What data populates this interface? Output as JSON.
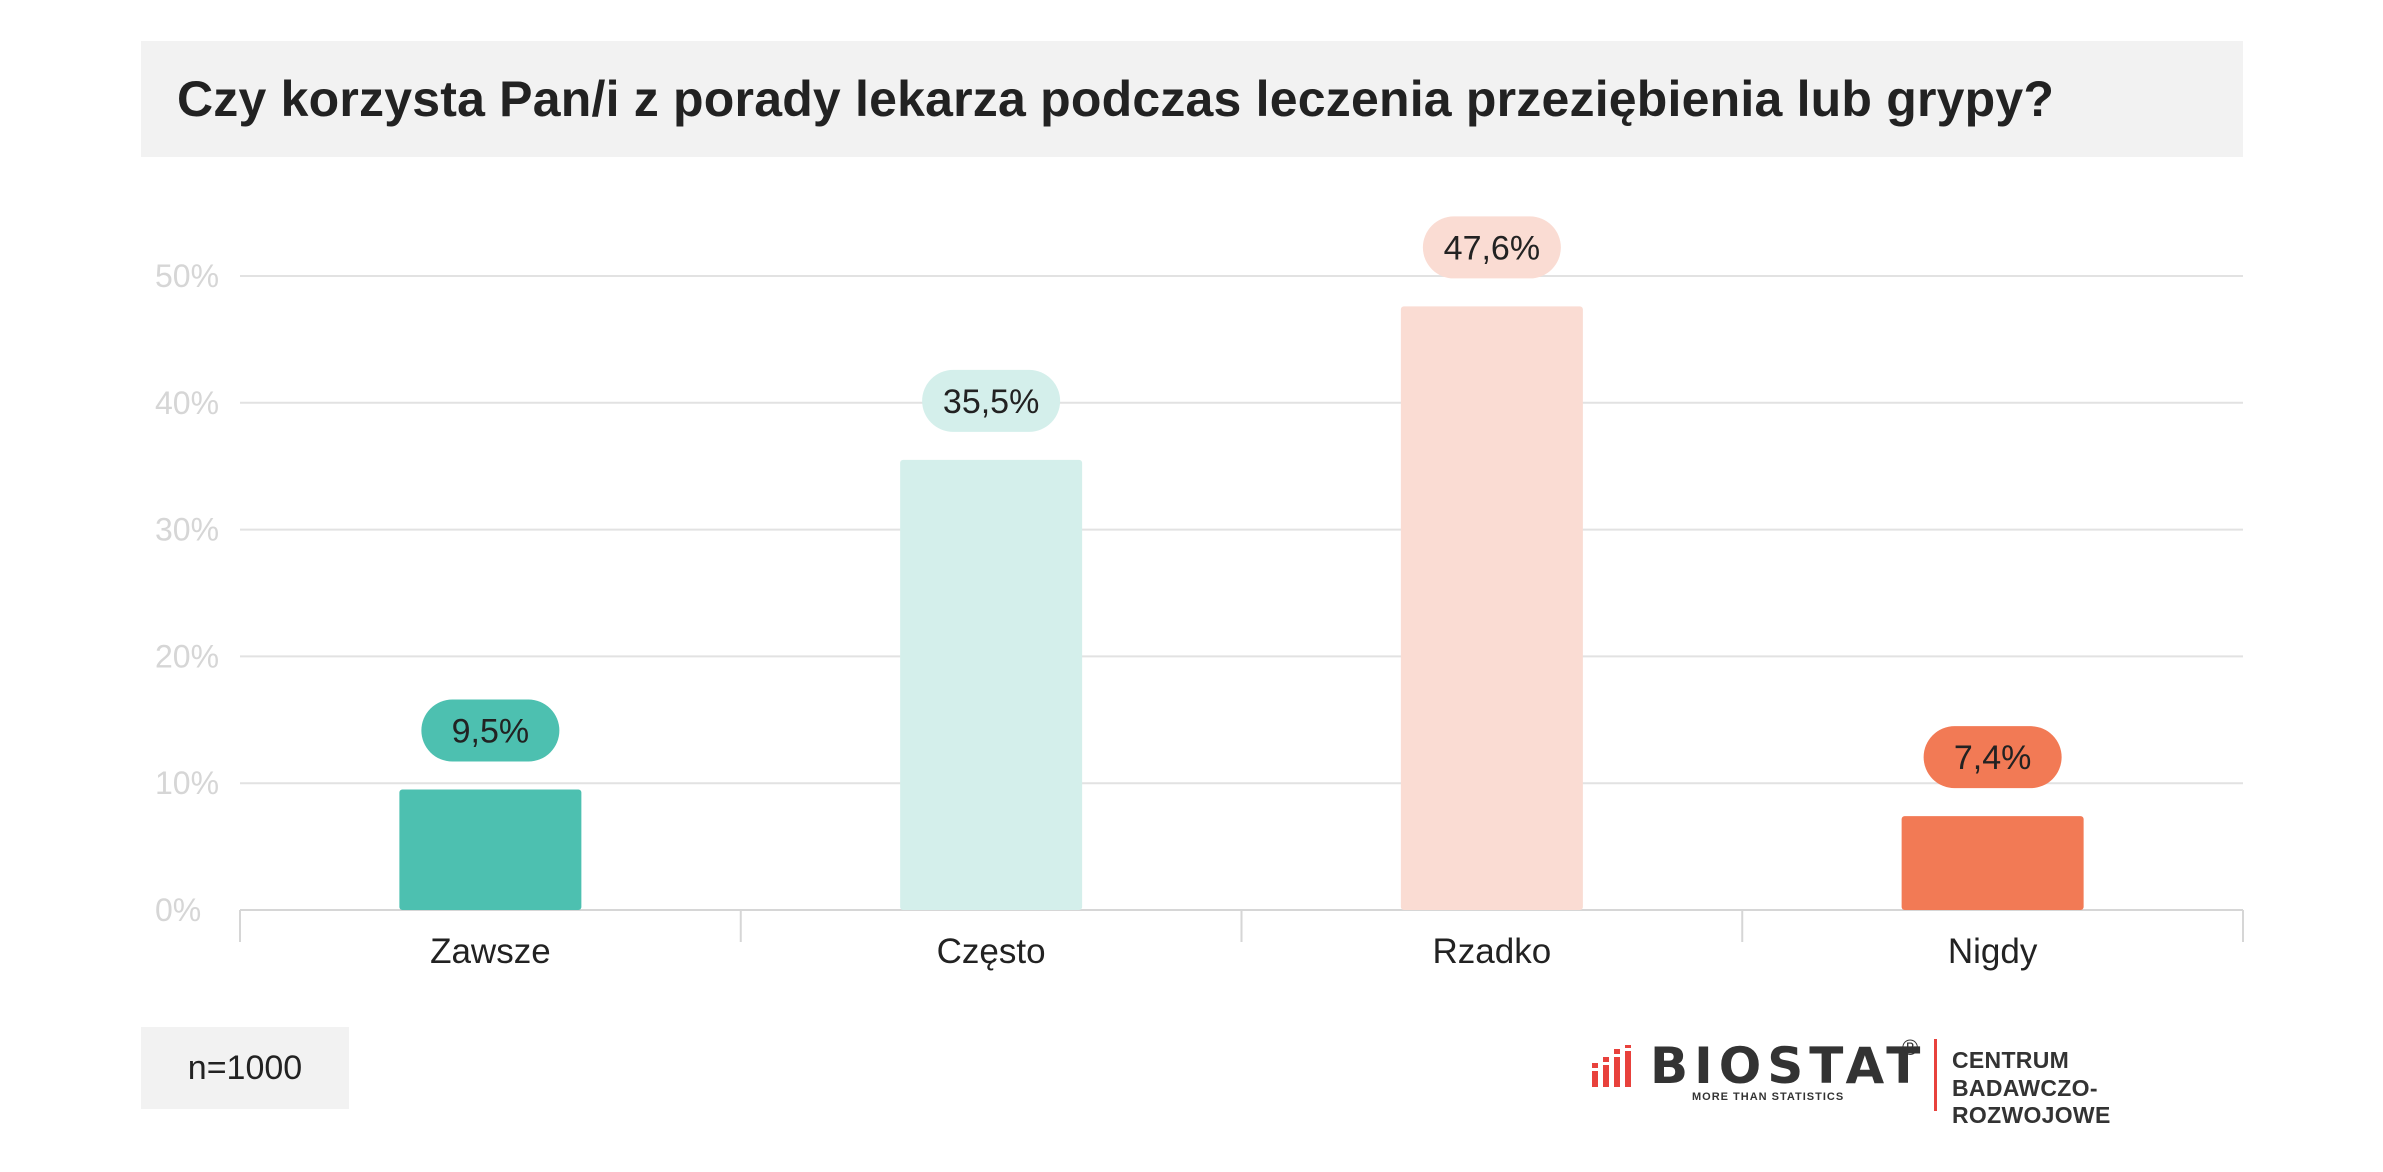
{
  "title": "Czy korzysta Pan/i z porady lekarza podczas leczenia przeziębienia lub grypy?",
  "sample": "n=1000",
  "logo": {
    "name": "BIOSTAT",
    "registered": "®",
    "tagline": "MORE THAN STATISTICS",
    "sub_line1": "CENTRUM",
    "sub_line2": "BADAWCZO-ROZWOJOWE"
  },
  "chart_data": {
    "type": "bar",
    "categories": [
      "Zawsze",
      "Często",
      "Rzadko",
      "Nigdy"
    ],
    "values": [
      9.5,
      35.5,
      47.6,
      7.4
    ],
    "value_labels": [
      "9,5%",
      "35,5%",
      "47,6%",
      "7,4%"
    ],
    "bar_colors": [
      "#4dc0b0",
      "#d4efeb",
      "#fadcd3",
      "#f27a55"
    ],
    "bubble_colors": [
      "#4dc0b0",
      "#d4efeb",
      "#fadcd3",
      "#f27a55"
    ],
    "ylim": [
      0,
      50
    ],
    "yticks": [
      0,
      10,
      20,
      30,
      40,
      50
    ],
    "ytick_labels": [
      "0%",
      "10%",
      "20%",
      "30%",
      "40%",
      "50%"
    ],
    "grid": true,
    "title": "",
    "xlabel": "",
    "ylabel": ""
  }
}
